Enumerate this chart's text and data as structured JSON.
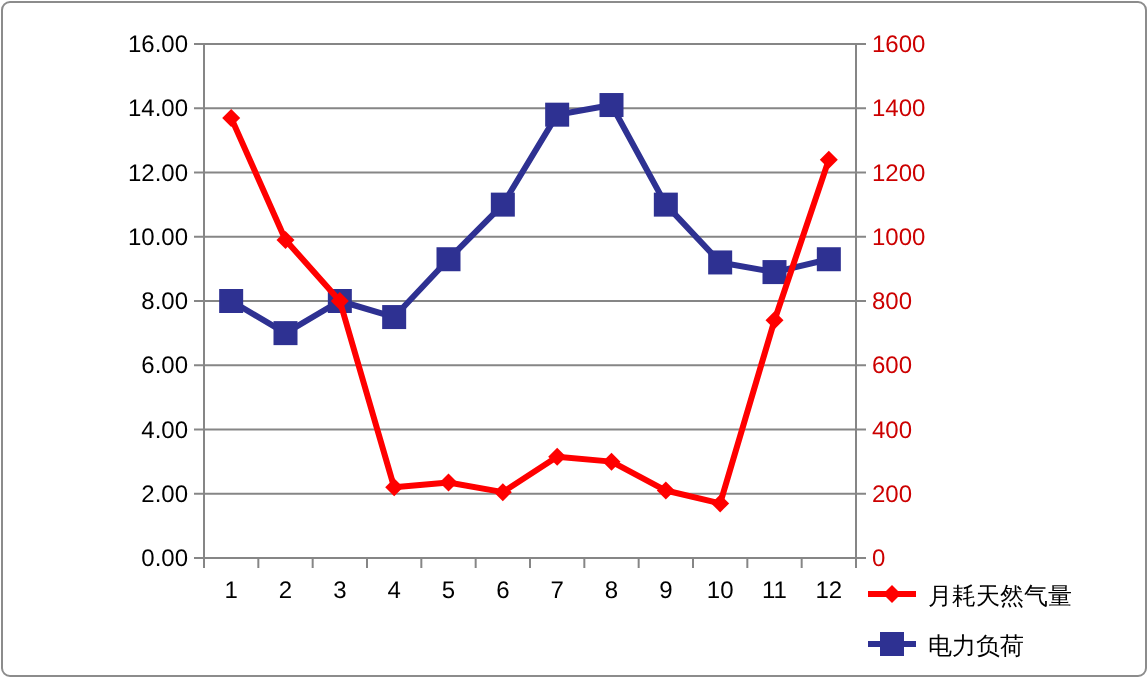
{
  "chart_data": {
    "type": "line",
    "categories": [
      "1",
      "2",
      "3",
      "4",
      "5",
      "6",
      "7",
      "8",
      "9",
      "10",
      "11",
      "12"
    ],
    "series": [
      {
        "name": "月耗天然气量",
        "color": "#ff0000",
        "axis": "y2",
        "marker": "diamond",
        "values": [
          1370,
          990,
          800,
          220,
          235,
          205,
          315,
          300,
          210,
          170,
          740,
          1240
        ]
      },
      {
        "name": "电力负荷",
        "color": "#2e3192",
        "marker": "square",
        "values": [
          8.0,
          7.0,
          8.0,
          7.5,
          9.3,
          11.0,
          13.8,
          14.1,
          11.0,
          9.2,
          8.9,
          9.3
        ]
      }
    ],
    "ylim": [
      0,
      16
    ],
    "yticks": [
      {
        "value": 0,
        "label": "0.00"
      },
      {
        "value": 2,
        "label": "2.00"
      },
      {
        "value": 4,
        "label": "4.00"
      },
      {
        "value": 6,
        "label": "6.00"
      },
      {
        "value": 8,
        "label": "8.00"
      },
      {
        "value": 10,
        "label": "10.00"
      },
      {
        "value": 12,
        "label": "12.00"
      },
      {
        "value": 14,
        "label": "14.00"
      },
      {
        "value": 16,
        "label": "16.00"
      }
    ],
    "y2lim": [
      0,
      1600
    ],
    "y2ticks": [
      0,
      200,
      400,
      600,
      800,
      1000,
      1200,
      1400,
      1600
    ],
    "grid": "y",
    "legend": "bottom right",
    "line_style": "solid"
  }
}
